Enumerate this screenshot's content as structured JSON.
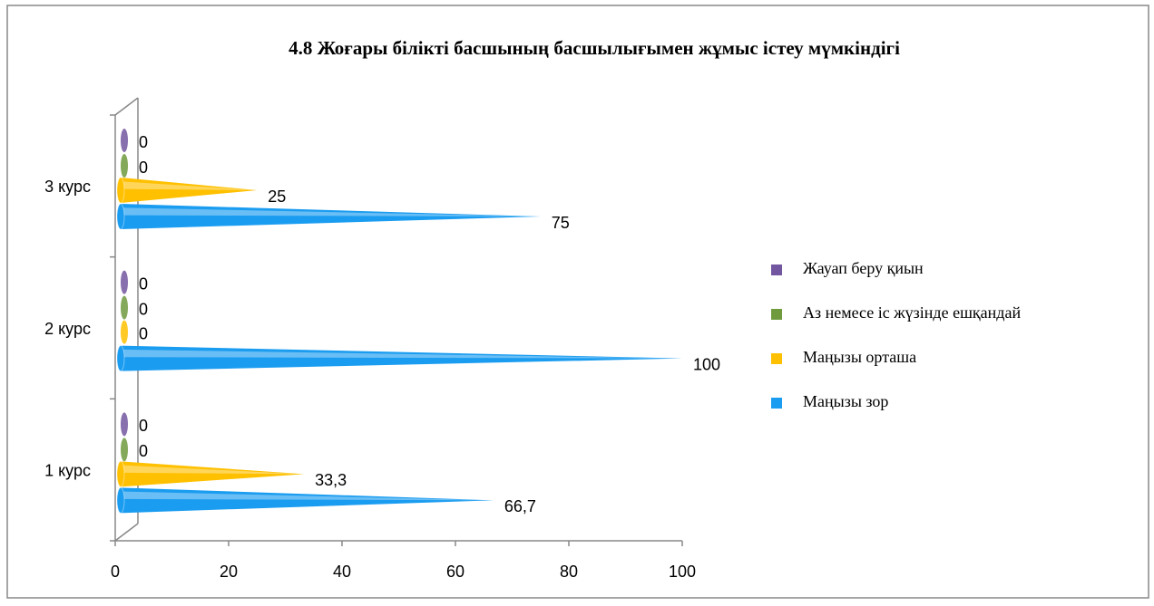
{
  "chart_data": {
    "type": "cone-bar",
    "title": "4.8 Жоғары білікті басшының басшылығымен жұмыс істеу мүмкіндігі",
    "categories": [
      "1 курс",
      "2 курс",
      "3 курс"
    ],
    "series": [
      {
        "name": "Маңызы зор",
        "color": "#1a9cf0",
        "values": [
          66.7,
          100,
          75
        ],
        "value_labels": [
          "66,7",
          "100",
          "75"
        ]
      },
      {
        "name": "Маңызы орташа",
        "color": "#ffc000",
        "values": [
          33.3,
          0,
          25
        ],
        "value_labels": [
          "33,3",
          "0",
          "25"
        ]
      },
      {
        "name": "Аз немесе іс жүзінде ешқандай",
        "color": "#6f9a3e",
        "values": [
          0,
          0,
          0
        ]
      },
      {
        "name": "Жауап беру қиын",
        "color": "#7356a0",
        "values": [
          0,
          0,
          0
        ]
      }
    ],
    "xlim": [
      0,
      100
    ],
    "xticks": [
      0,
      20,
      40,
      60,
      80,
      100
    ],
    "legend": "right"
  }
}
